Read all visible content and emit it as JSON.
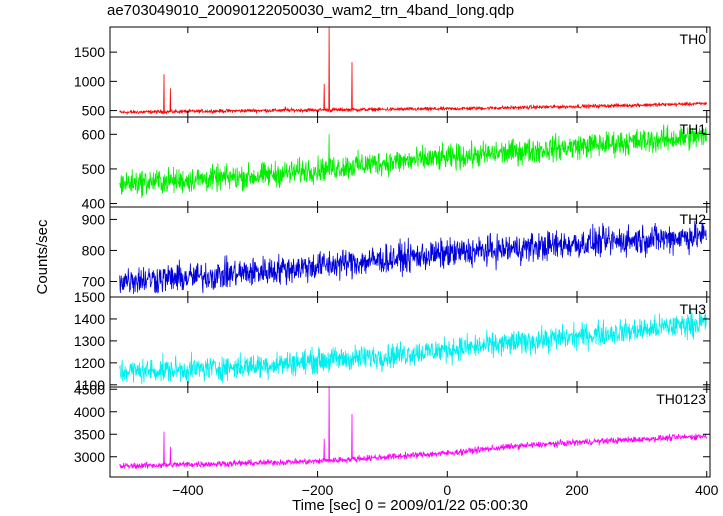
{
  "title": "ae703049010_20090122050030_wam2_trn_4band_long.qdp",
  "chart_data": {
    "type": "line",
    "title": "ae703049010_20090122050030_wam2_trn_4band_long.qdp",
    "xlabel": "Time [sec] 0 = 2009/01/22 05:00:30",
    "ylabel": "Counts/sec",
    "xlim": [
      -520,
      405
    ],
    "x_range": [
      -505,
      400
    ],
    "x_ticks": [
      -400,
      -200,
      0,
      200,
      400
    ],
    "x_tick_labels": [
      "−400",
      "−200",
      "0",
      "200",
      "400"
    ],
    "series": [
      {
        "name": "TH0",
        "color": "#ff0000",
        "ylim": [
          390,
          1930
        ],
        "y_ticks": [
          500,
          1000,
          1500
        ],
        "y_tick_labels": [
          "500",
          "1000",
          "1500"
        ],
        "baseline": [
          [
            -505,
            470
          ],
          [
            -300,
            500
          ],
          [
            0,
            530
          ],
          [
            200,
            570
          ],
          [
            400,
            620
          ]
        ],
        "noise": 35,
        "spikes": [
          [
            -437,
            1120
          ],
          [
            -427,
            880
          ],
          [
            -190,
            960
          ],
          [
            -182,
            1950
          ],
          [
            -147,
            1330
          ],
          [
            -250,
            570
          ]
        ]
      },
      {
        "name": "TH1",
        "color": "#00ee00",
        "ylim": [
          390,
          650
        ],
        "y_ticks": [
          400,
          500,
          600
        ],
        "y_tick_labels": [
          "400",
          "500",
          "600"
        ],
        "baseline": [
          [
            -505,
            458
          ],
          [
            -400,
            468
          ],
          [
            -300,
            478
          ],
          [
            -200,
            498
          ],
          [
            -100,
            518
          ],
          [
            0,
            532
          ],
          [
            100,
            548
          ],
          [
            200,
            565
          ],
          [
            300,
            580
          ],
          [
            400,
            595
          ]
        ],
        "noise": 42,
        "spikes": [
          [
            -182,
            600
          ]
        ]
      },
      {
        "name": "TH2",
        "color": "#0000dd",
        "ylim": [
          650,
          940
        ],
        "y_ticks": [
          700,
          800,
          900
        ],
        "y_tick_labels": [
          "700",
          "800",
          "900"
        ],
        "baseline": [
          [
            -505,
            705
          ],
          [
            -400,
            712
          ],
          [
            -300,
            730
          ],
          [
            -200,
            750
          ],
          [
            -100,
            770
          ],
          [
            0,
            790
          ],
          [
            100,
            805
          ],
          [
            200,
            822
          ],
          [
            300,
            835
          ],
          [
            400,
            848
          ]
        ],
        "noise": 55,
        "spikes": []
      },
      {
        "name": "TH3",
        "color": "#00eeee",
        "ylim": [
          1090,
          1500
        ],
        "y_ticks": [
          1100,
          1200,
          1300,
          1400,
          1500
        ],
        "y_tick_labels": [
          "1100",
          "1200",
          "1300",
          "1400",
          "1500"
        ],
        "baseline": [
          [
            -505,
            1160
          ],
          [
            -400,
            1170
          ],
          [
            -300,
            1185
          ],
          [
            -200,
            1210
          ],
          [
            -100,
            1230
          ],
          [
            0,
            1260
          ],
          [
            100,
            1290
          ],
          [
            200,
            1320
          ],
          [
            300,
            1350
          ],
          [
            400,
            1385
          ]
        ],
        "noise": 65,
        "spikes": []
      },
      {
        "name": "TH0123",
        "color": "#ff00ff",
        "ylim": [
          2550,
          4550
        ],
        "y_ticks": [
          3000,
          3500,
          4000,
          4500
        ],
        "y_tick_labels": [
          "3000",
          "3500",
          "4000",
          "4500"
        ],
        "baseline": [
          [
            -505,
            2790
          ],
          [
            -400,
            2830
          ],
          [
            -300,
            2860
          ],
          [
            -200,
            2900
          ],
          [
            -100,
            2990
          ],
          [
            0,
            3080
          ],
          [
            100,
            3230
          ],
          [
            200,
            3320
          ],
          [
            300,
            3390
          ],
          [
            400,
            3460
          ]
        ],
        "noise": 80,
        "spikes": [
          [
            -437,
            3560
          ],
          [
            -427,
            3220
          ],
          [
            -190,
            3400
          ],
          [
            -182,
            4560
          ],
          [
            -147,
            3950
          ]
        ]
      }
    ]
  }
}
